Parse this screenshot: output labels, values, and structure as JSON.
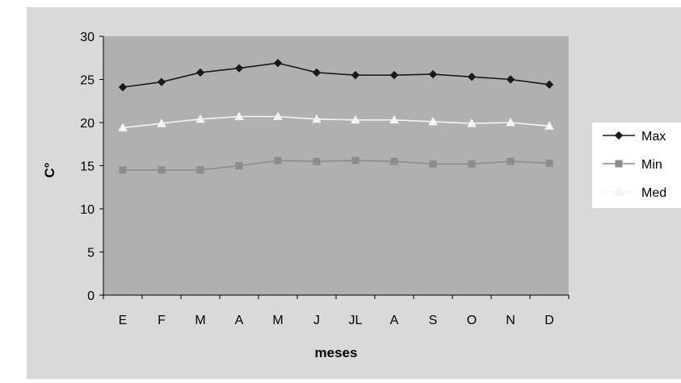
{
  "chart_data": {
    "type": "line",
    "categories": [
      "E",
      "F",
      "M",
      "A",
      "M",
      "J",
      "JL",
      "A",
      "S",
      "O",
      "N",
      "D"
    ],
    "series": [
      {
        "name": "Max",
        "values": [
          24.1,
          24.7,
          25.8,
          26.3,
          26.9,
          25.8,
          25.5,
          25.5,
          25.6,
          25.3,
          25.0,
          24.4
        ],
        "color": "#1a1a1a",
        "marker": "diamond"
      },
      {
        "name": "Min",
        "values": [
          14.5,
          14.5,
          14.5,
          15.0,
          15.6,
          15.5,
          15.6,
          15.5,
          15.2,
          15.2,
          15.5,
          15.3
        ],
        "color": "#8c8c8c",
        "marker": "square"
      },
      {
        "name": "Med",
        "values": [
          19.4,
          19.9,
          20.4,
          20.7,
          20.7,
          20.4,
          20.3,
          20.3,
          20.1,
          19.9,
          20.0,
          19.6
        ],
        "color": "#f4f4f4",
        "marker": "triangle"
      }
    ],
    "xlabel": "meses",
    "ylabel": "C°",
    "ylim": [
      0,
      30
    ],
    "yticks": [
      "0",
      "5",
      "10",
      "15",
      "20",
      "25",
      "30"
    ],
    "grid": false,
    "legend_position": "right",
    "colors": {
      "outer_background": "#d9d9d9",
      "plot_background": "#b0b0b0",
      "legend_background": "#ffffff"
    }
  }
}
